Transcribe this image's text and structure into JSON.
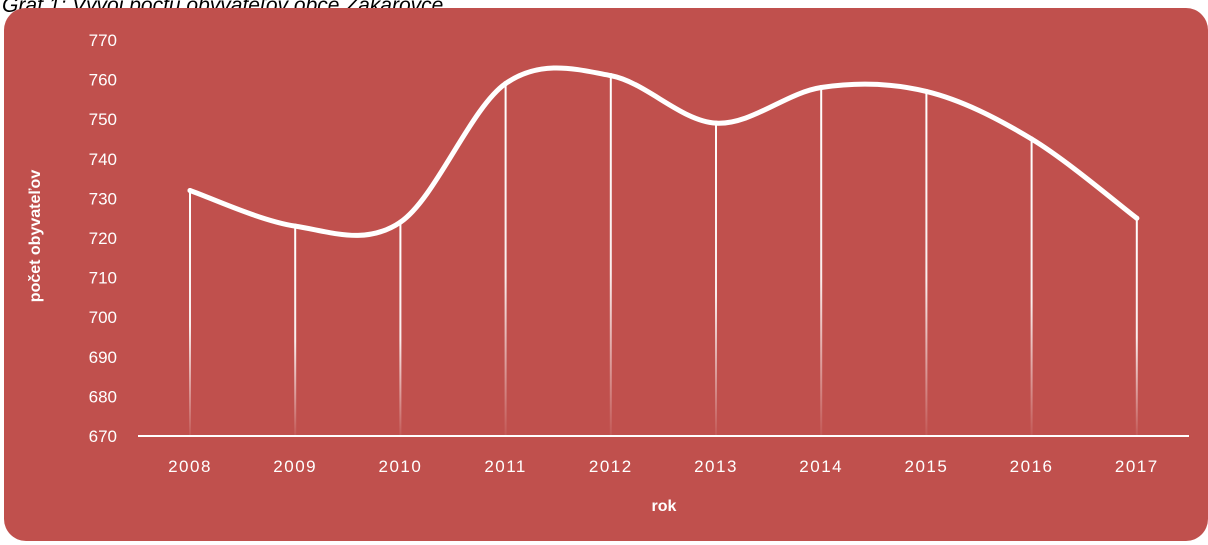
{
  "caption": "Graf 1: Vývoj počtu obyvateľov obce Zakarovce",
  "colors": {
    "background": "#c0504d",
    "line": "#ffffff"
  },
  "chart_data": {
    "type": "line",
    "title": "Graf 1: Vývoj počtu obyvateľov obce Zakarovce",
    "xlabel": "rok",
    "ylabel": "počet obyvateľov",
    "categories": [
      "2008",
      "2009",
      "2010",
      "2011",
      "2012",
      "2013",
      "2014",
      "2015",
      "2016",
      "2017"
    ],
    "series": [
      {
        "values": [
          732,
          723,
          724,
          759,
          761,
          749,
          758,
          757,
          745,
          725
        ]
      }
    ],
    "ylim": [
      670,
      770
    ],
    "yticks": [
      670,
      680,
      690,
      700,
      710,
      720,
      730,
      740,
      750,
      760,
      770
    ],
    "smooth": true,
    "drop_lines": true,
    "grid": false,
    "legend": "none"
  }
}
